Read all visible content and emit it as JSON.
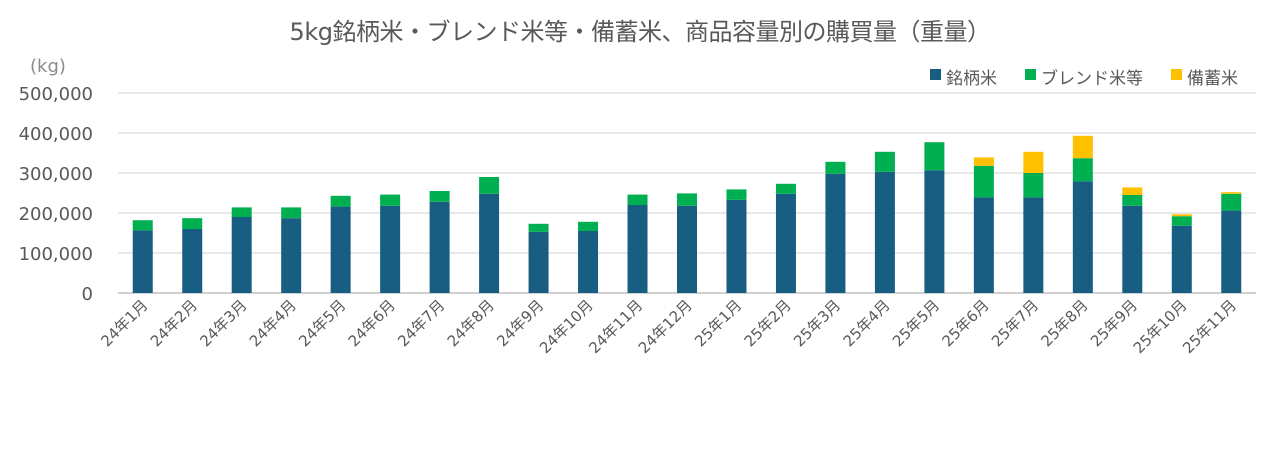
{
  "chart": {
    "title": "5kg銘柄米・ブレンド米等・備蓄米、商品容量別の購買量（重量）",
    "unit_label": "(kg)"
  },
  "legend": {
    "items": [
      {
        "label": "銘柄米",
        "color": "#185E82"
      },
      {
        "label": "ブレンド米等",
        "color": "#00B050"
      },
      {
        "label": "備蓄米",
        "color": "#FFC000"
      }
    ]
  },
  "axis": {
    "y_ticks": [
      "0",
      "100,000",
      "200,000",
      "300,000",
      "400,000",
      "500,000"
    ]
  },
  "chart_data": {
    "type": "bar",
    "stacked": true,
    "title": "5kg銘柄米・ブレンド米等・備蓄米、商品容量別の購買量（重量）",
    "xlabel": "",
    "ylabel": "(kg)",
    "ylim": [
      0,
      500000
    ],
    "y_tick_step": 100000,
    "grid": true,
    "legend_position": "top-right",
    "categories": [
      "24年1月",
      "24年2月",
      "24年3月",
      "24年4月",
      "24年5月",
      "24年6月",
      "24年7月",
      "24年8月",
      "24年9月",
      "24年10月",
      "24年11月",
      "24年12月",
      "25年1月",
      "25年2月",
      "25年3月",
      "25年4月",
      "25年5月",
      "25年6月",
      "25年7月",
      "25年8月",
      "25年9月",
      "25年10月",
      "25年11月"
    ],
    "series": [
      {
        "name": "銘柄米",
        "color": "#185E82",
        "values": [
          157000,
          160000,
          190000,
          187000,
          216000,
          218000,
          228000,
          248000,
          153000,
          155000,
          220000,
          218000,
          233000,
          248000,
          298000,
          303000,
          307000,
          239000,
          239000,
          279000,
          218000,
          168000,
          206000
        ]
      },
      {
        "name": "ブレンド米等",
        "color": "#00B050",
        "values": [
          25000,
          27000,
          24000,
          27000,
          27000,
          28000,
          27000,
          42000,
          20000,
          23000,
          26000,
          31000,
          26000,
          25000,
          30000,
          50000,
          70000,
          79000,
          61000,
          58000,
          27000,
          24000,
          42000
        ]
      },
      {
        "name": "備蓄米",
        "color": "#FFC000",
        "values": [
          0,
          0,
          0,
          0,
          0,
          0,
          0,
          0,
          0,
          0,
          0,
          0,
          0,
          0,
          0,
          0,
          0,
          21000,
          53000,
          56000,
          19000,
          5000,
          4000
        ]
      }
    ]
  }
}
